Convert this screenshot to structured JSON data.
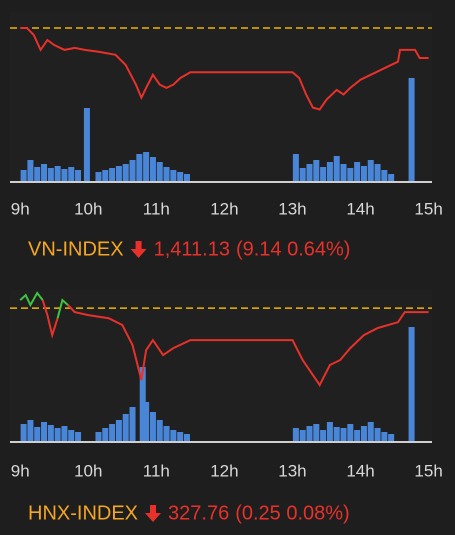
{
  "chart_data": [
    {
      "type": "line",
      "title": "VN-INDEX",
      "close": "1,411.13",
      "change": "(9.14 0.64%)",
      "title_color": "#f5a623",
      "change_color": "#e8312a",
      "xlim": [
        8.85,
        15.05
      ],
      "xticks": [
        {
          "value": 9,
          "label": "9h"
        },
        {
          "value": 10,
          "label": "10h"
        },
        {
          "value": 11,
          "label": "11h"
        },
        {
          "value": 12,
          "label": "12h"
        },
        {
          "value": 13,
          "label": "13h"
        },
        {
          "value": 14,
          "label": "14h"
        },
        {
          "value": 15,
          "label": "15h"
        }
      ],
      "ylim": [
        1373.3,
        1425.15
      ],
      "reference": 1420.27,
      "reference_color": "#f0b400",
      "line": {
        "color": "#e8312a",
        "up_color": "#3fc43f",
        "x": [
          9.0,
          9.1,
          9.2,
          9.3,
          9.4,
          9.5,
          9.65,
          9.8,
          9.95,
          10.15,
          10.4,
          10.55,
          10.7,
          10.78,
          10.85,
          10.95,
          11.05,
          11.15,
          11.25,
          11.35,
          11.5,
          13.0,
          13.1,
          13.2,
          13.3,
          13.4,
          13.5,
          13.65,
          13.75,
          13.85,
          14.0,
          14.15,
          14.35,
          14.55,
          14.58,
          14.8,
          14.87,
          15.0
        ],
        "values": [
          1420.27,
          1420.27,
          1418.1,
          1413.6,
          1416.6,
          1415.1,
          1413.6,
          1414.2,
          1413.6,
          1413.0,
          1412.1,
          1409.0,
          1403.0,
          1399.0,
          1402.0,
          1406.0,
          1403.0,
          1402.0,
          1403.0,
          1405.0,
          1406.8,
          1406.8,
          1405.0,
          1400.0,
          1396.0,
          1395.4,
          1398.4,
          1401.4,
          1400.0,
          1402.0,
          1404.5,
          1406.0,
          1408.0,
          1410.0,
          1413.6,
          1413.6,
          1411.13,
          1411.13
        ]
      },
      "volume": {
        "color": "#4a86d8",
        "vlim": [
          0,
          170
        ],
        "x": [
          9.05,
          9.15,
          9.25,
          9.35,
          9.45,
          9.55,
          9.65,
          9.75,
          9.85,
          9.98,
          10.15,
          10.25,
          10.35,
          10.45,
          10.55,
          10.65,
          10.75,
          10.85,
          10.95,
          11.05,
          11.15,
          11.25,
          11.35,
          11.45,
          13.05,
          13.15,
          13.25,
          13.35,
          13.45,
          13.55,
          13.65,
          13.75,
          13.85,
          13.95,
          14.05,
          14.15,
          14.25,
          14.35,
          14.45,
          14.75
        ],
        "values": [
          12,
          22,
          15,
          18,
          14,
          16,
          13,
          15,
          12,
          74,
          10,
          12,
          14,
          16,
          18,
          22,
          28,
          30,
          25,
          20,
          15,
          12,
          10,
          8,
          28,
          14,
          18,
          22,
          15,
          20,
          26,
          18,
          14,
          20,
          16,
          22,
          18,
          12,
          8,
          104
        ]
      }
    },
    {
      "type": "line",
      "title": "HNX-INDEX",
      "close": "327.76",
      "change": "(0.25 0.08%)",
      "title_color": "#f5a623",
      "change_color": "#e8312a",
      "xlim": [
        8.85,
        15.05
      ],
      "xticks": [
        {
          "value": 9,
          "label": "9h"
        },
        {
          "value": 10,
          "label": "10h"
        },
        {
          "value": 11,
          "label": "11h"
        },
        {
          "value": 12,
          "label": "12h"
        },
        {
          "value": 13,
          "label": "13h"
        },
        {
          "value": 14,
          "label": "14h"
        },
        {
          "value": 15,
          "label": "15h"
        }
      ],
      "ylim": [
        319.64,
        329.14
      ],
      "reference": 328.01,
      "reference_color": "#f0b400",
      "line": {
        "color": "#e8312a",
        "up_color": "#3fc43f",
        "x": [
          9.0,
          9.08,
          9.15,
          9.25,
          9.33,
          9.4,
          9.47,
          9.55,
          9.62,
          9.7,
          9.8,
          10.0,
          10.3,
          10.5,
          10.65,
          10.78,
          10.85,
          10.95,
          11.1,
          11.25,
          11.5,
          13.0,
          13.15,
          13.3,
          13.4,
          13.55,
          13.7,
          13.85,
          14.05,
          14.25,
          14.55,
          14.65,
          15.0
        ],
        "values": [
          328.51,
          328.82,
          328.2,
          328.95,
          328.51,
          327.57,
          326.32,
          327.38,
          328.51,
          328.2,
          327.76,
          327.57,
          327.38,
          326.95,
          325.7,
          323.51,
          325.38,
          326.01,
          325.07,
          325.51,
          326.01,
          326.01,
          324.76,
          323.82,
          323.2,
          324.45,
          324.76,
          325.51,
          326.32,
          326.76,
          327.13,
          327.76,
          327.76
        ]
      },
      "volume": {
        "color": "#4a86d8",
        "vlim": [
          0,
          152
        ],
        "x": [
          9.05,
          9.15,
          9.25,
          9.35,
          9.45,
          9.55,
          9.65,
          9.75,
          9.85,
          10.15,
          10.25,
          10.35,
          10.45,
          10.55,
          10.65,
          10.8,
          10.85,
          10.95,
          11.05,
          11.15,
          11.25,
          11.35,
          11.45,
          13.05,
          13.15,
          13.25,
          13.35,
          13.45,
          13.55,
          13.65,
          13.75,
          13.85,
          13.95,
          14.05,
          14.15,
          14.25,
          14.35,
          14.45,
          14.75
        ],
        "values": [
          18,
          22,
          15,
          20,
          17,
          14,
          16,
          12,
          10,
          10,
          14,
          18,
          22,
          28,
          35,
          75,
          40,
          30,
          22,
          16,
          12,
          10,
          8,
          14,
          12,
          16,
          18,
          12,
          20,
          15,
          14,
          18,
          12,
          16,
          20,
          14,
          10,
          8,
          115
        ]
      }
    }
  ]
}
